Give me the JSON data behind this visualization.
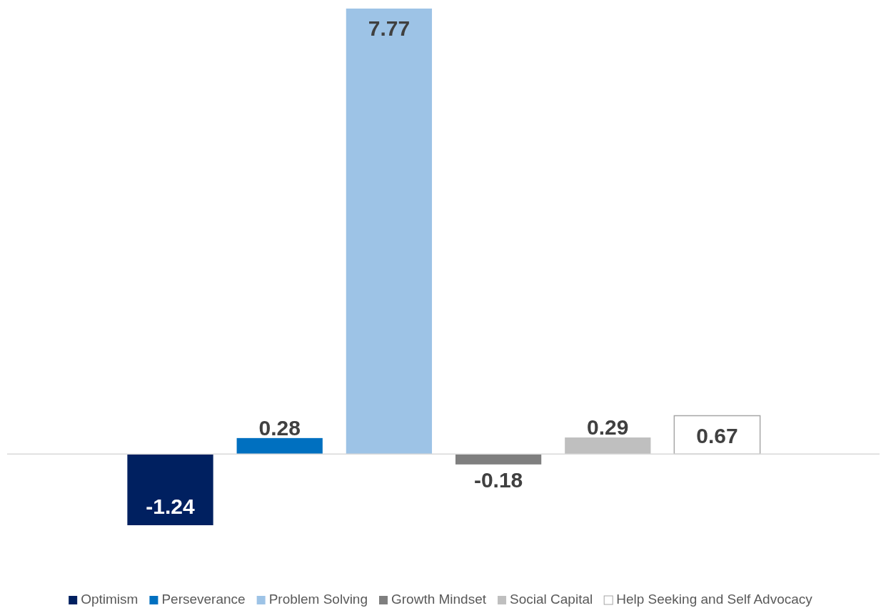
{
  "chart_data": {
    "type": "bar",
    "categories": [
      null
    ],
    "series": [
      {
        "name": "Optimism",
        "color": "#002060",
        "values": [
          -1.24
        ]
      },
      {
        "name": "Perseverance",
        "color": "#0070c0",
        "values": [
          0.28
        ]
      },
      {
        "name": "Problem Solving",
        "color": "#9dc3e6",
        "values": [
          7.77
        ]
      },
      {
        "name": "Growth Mindset",
        "color": "#7f7f7f",
        "values": [
          -0.18
        ]
      },
      {
        "name": "Social Capital",
        "color": "#bfbfbf",
        "values": [
          0.29
        ]
      },
      {
        "name": "Help Seeking and Self Advocacy",
        "color": "#ffffff",
        "values": [
          0.67
        ]
      }
    ],
    "data_labels": true,
    "legend": "bottom"
  }
}
